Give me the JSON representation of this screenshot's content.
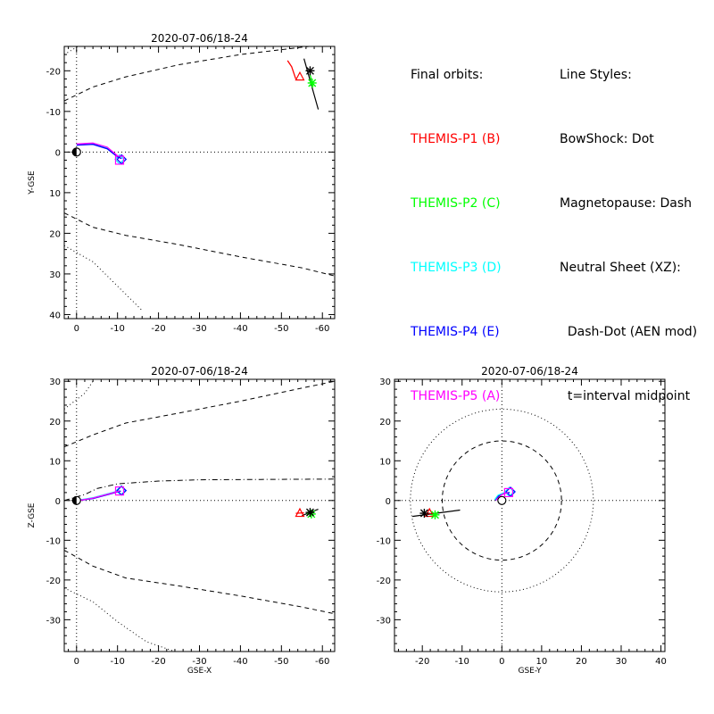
{
  "legend": {
    "orbits_title": "Final orbits:",
    "orbits": [
      {
        "label": "THEMIS-P1 (B)",
        "color": "#ff0000"
      },
      {
        "label": "THEMIS-P2 (C)",
        "color": "#00ff00"
      },
      {
        "label": "THEMIS-P3 (D)",
        "color": "#00ffff"
      },
      {
        "label": "THEMIS-P4 (E)",
        "color": "#0000ff"
      },
      {
        "label": "THEMIS-P5 (A)",
        "color": "#ff00ff"
      }
    ],
    "styles_title": "Line Styles:",
    "styles": [
      "BowShock: Dot",
      "Magnetopause: Dash",
      "Neutral Sheet (XZ):",
      "  Dash-Dot (AEN mod)",
      "  t=interval midpoint"
    ]
  },
  "chart_data": [
    {
      "id": "xy",
      "type": "line",
      "title": "2020-07-06/18-24",
      "xlabel": "",
      "ylabel": "Y-GSE",
      "xlim": [
        3,
        -63
      ],
      "ylim": [
        -26,
        41
      ],
      "xticks": [
        0,
        -10,
        -20,
        -30,
        -40,
        -50,
        -60
      ],
      "yticks": [
        -20,
        -10,
        0,
        10,
        20,
        30,
        40
      ],
      "earth": [
        0,
        0
      ],
      "bow_shock": [
        [
          [
            3,
            -24
          ],
          [
            -2,
            -27
          ]
        ],
        [
          [
            3,
            23
          ],
          [
            -4,
            27
          ],
          [
            -8,
            31
          ],
          [
            -12,
            35
          ],
          [
            -15,
            38
          ],
          [
            -16,
            39
          ]
        ]
      ],
      "magnetopause": [
        [
          [
            3,
            -12.6
          ],
          [
            -4,
            -16
          ],
          [
            -12,
            -18.5
          ],
          [
            -25,
            -21.5
          ],
          [
            -40,
            -24
          ],
          [
            -55,
            -25.8
          ],
          [
            -63,
            -26.7
          ]
        ],
        [
          [
            3,
            15
          ],
          [
            -4,
            18.5
          ],
          [
            -12,
            20.5
          ],
          [
            -25,
            22.8
          ],
          [
            -40,
            25.8
          ],
          [
            -55,
            28.5
          ],
          [
            -63,
            30.5
          ]
        ]
      ],
      "orbits": [
        {
          "name": "THEMIS-P1 (B)",
          "color": "#ff0000",
          "path": [
            [
              -53.5,
              -18
            ],
            [
              -52.5,
              -21
            ],
            [
              -51.5,
              -22.5
            ]
          ],
          "marker": [
            -54.5,
            -18.5
          ],
          "symbol": "triangle"
        },
        {
          "name": "THEMIS-P2 (C)",
          "color": "#00ff00",
          "path": [
            [
              -57,
              -19
            ],
            [
              -57.5,
              -17
            ],
            [
              -57.7,
              -16
            ]
          ],
          "marker": [
            -57.5,
            -17
          ],
          "symbol": "asterisk"
        },
        {
          "name": "THEMIS-P3 (D)",
          "color": "#00ffff",
          "path": [
            [
              0,
              -1.8
            ],
            [
              -4,
              -2
            ],
            [
              -7.5,
              -1
            ],
            [
              -10,
              1
            ]
          ],
          "marker": [
            -10.5,
            1.8
          ],
          "symbol": "diamond"
        },
        {
          "name": "THEMIS-P4 (E)",
          "color": "#0000ff",
          "path": [
            [
              0,
              -1.7
            ],
            [
              -4,
              -1.9
            ],
            [
              -7.5,
              -0.8
            ],
            [
              -10,
              1.2
            ],
            [
              -11,
              1.6
            ]
          ],
          "marker": [
            -11,
            1.8
          ],
          "symbol": "diamond"
        },
        {
          "name": "THEMIS-P5 (A)",
          "color": "#ff00ff",
          "path": [
            [
              0,
              -2
            ],
            [
              -4,
              -2.2
            ],
            [
              -7.5,
              -1.2
            ],
            [
              -10,
              0.9
            ]
          ],
          "marker": [
            -10.5,
            2
          ],
          "symbol": "square"
        }
      ],
      "midpoint_line": [
        [
          -55.5,
          -23
        ],
        [
          -59,
          -10.5
        ]
      ],
      "midpoint_marker": [
        -57,
        -20
      ]
    },
    {
      "id": "xz",
      "type": "line",
      "title": "2020-07-06/18-24",
      "xlabel": "GSE-X",
      "ylabel": "Z-GSE",
      "xlim": [
        3,
        -63
      ],
      "ylim": [
        30.5,
        -38
      ],
      "xticks": [
        0,
        -10,
        -20,
        -30,
        -40,
        -50,
        -60
      ],
      "yticks": [
        30,
        20,
        10,
        0,
        -10,
        -20,
        -30
      ],
      "earth": [
        0,
        0
      ],
      "bow_shock": [
        [
          [
            3,
            23
          ],
          [
            -2,
            27
          ],
          [
            -4,
            30
          ]
        ],
        [
          [
            3,
            -22
          ],
          [
            -4,
            -25.5
          ],
          [
            -10,
            -30.5
          ],
          [
            -17,
            -35.5
          ],
          [
            -24,
            -38
          ]
        ]
      ],
      "magnetopause": [
        [
          [
            3,
            13.5
          ],
          [
            -4,
            16.5
          ],
          [
            -12,
            19.5
          ],
          [
            -25,
            22
          ],
          [
            -40,
            25
          ],
          [
            -55,
            28.3
          ],
          [
            -63,
            30
          ]
        ],
        [
          [
            3,
            -12.5
          ],
          [
            -4,
            -16.5
          ],
          [
            -12,
            -19.5
          ],
          [
            -25,
            -21.5
          ],
          [
            -40,
            -24
          ],
          [
            -55,
            -26.8
          ],
          [
            -63,
            -28.5
          ]
        ]
      ],
      "neutral_sheet": [
        [
          3,
          0
        ],
        [
          -2,
          1.5
        ],
        [
          -5,
          3
        ],
        [
          -10,
          4.2
        ],
        [
          -20,
          4.9
        ],
        [
          -30,
          5.2
        ],
        [
          -45,
          5.3
        ],
        [
          -63,
          5.4
        ]
      ],
      "orbits": [
        {
          "name": "THEMIS-P1 (B)",
          "color": "#ff0000",
          "path": [
            [
              -53.5,
              -3.2
            ],
            [
              -55.5,
              -3.1
            ]
          ],
          "marker": [
            -54.5,
            -3.2
          ],
          "symbol": "triangle"
        },
        {
          "name": "THEMIS-P2 (C)",
          "color": "#00ff00",
          "path": [
            [
              -56.5,
              -3.1
            ],
            [
              -57.5,
              -3.2
            ]
          ],
          "marker": [
            -57.3,
            -3.4
          ],
          "symbol": "asterisk"
        },
        {
          "name": "THEMIS-P3 (D)",
          "color": "#00ffff",
          "path": [
            [
              0,
              0
            ],
            [
              -4,
              0.7
            ],
            [
              -8,
              1.8
            ],
            [
              -10.5,
              2.5
            ]
          ],
          "marker": [
            -10.8,
            2.5
          ],
          "symbol": "diamond"
        },
        {
          "name": "THEMIS-P4 (E)",
          "color": "#0000ff",
          "path": [
            [
              0,
              -0.1
            ],
            [
              -4,
              0.5
            ],
            [
              -8,
              1.6
            ],
            [
              -10.8,
              2.4
            ]
          ],
          "marker": [
            -11,
            2.5
          ],
          "symbol": "diamond"
        },
        {
          "name": "THEMIS-P5 (A)",
          "color": "#ff00ff",
          "path": [
            [
              0,
              -0.1
            ],
            [
              -4,
              0.6
            ],
            [
              -8,
              1.7
            ],
            [
              -10.5,
              2.4
            ]
          ],
          "marker": [
            -10.5,
            2.4
          ],
          "symbol": "square"
        }
      ],
      "midpoint_line": [
        [
          -55,
          -3.8
        ],
        [
          -59,
          -2.2
        ]
      ],
      "midpoint_marker": [
        -57,
        -3
      ]
    },
    {
      "id": "yz",
      "type": "line",
      "title": "2020-07-06/18-24",
      "xlabel": "GSE-Y",
      "ylabel": "",
      "xlim": [
        -27,
        41
      ],
      "ylim": [
        30.5,
        -38
      ],
      "xticks": [
        -20,
        -10,
        0,
        10,
        20,
        30,
        40
      ],
      "yticks": [
        30,
        20,
        10,
        0,
        -10,
        -20,
        -30
      ],
      "earth": [
        0,
        0
      ],
      "bow_shock_radius": 23,
      "magnetopause_radius": 15,
      "orbits": [
        {
          "name": "THEMIS-P1 (B)",
          "color": "#ff0000",
          "path": [
            [
              -18,
              -3.2
            ],
            [
              -19,
              -3.4
            ]
          ],
          "marker": [
            -18.2,
            -3.2
          ],
          "symbol": "triangle"
        },
        {
          "name": "THEMIS-P2 (C)",
          "color": "#00ff00",
          "path": [
            [
              -16.5,
              -3.5
            ],
            [
              -17,
              -3.6
            ]
          ],
          "marker": [
            -16.8,
            -3.6
          ],
          "symbol": "asterisk"
        },
        {
          "name": "THEMIS-P3 (D)",
          "color": "#00ffff",
          "path": [
            [
              -1.8,
              0.2
            ],
            [
              -1,
              1.3
            ],
            [
              0.5,
              1.9
            ],
            [
              1.8,
              2.1
            ]
          ],
          "marker": [
            1.9,
            2.2
          ],
          "symbol": "diamond"
        },
        {
          "name": "THEMIS-P4 (E)",
          "color": "#0000ff",
          "path": [
            [
              -1.6,
              0
            ],
            [
              -0.8,
              1.1
            ],
            [
              0.7,
              1.8
            ],
            [
              2,
              2
            ]
          ],
          "marker": [
            2.2,
            2.2
          ],
          "symbol": "diamond"
        },
        {
          "name": "THEMIS-P5 (A)",
          "color": "#ff00ff",
          "path": [
            [
              -1.5,
              0.1
            ],
            [
              0,
              1.5
            ],
            [
              1.6,
              2
            ]
          ],
          "marker": [
            1.7,
            2
          ],
          "symbol": "square"
        }
      ],
      "midpoint_line": [
        [
          -22.5,
          -4
        ],
        [
          -10.5,
          -2.4
        ]
      ],
      "midpoint_marker": [
        -19.5,
        -3.2
      ]
    }
  ]
}
